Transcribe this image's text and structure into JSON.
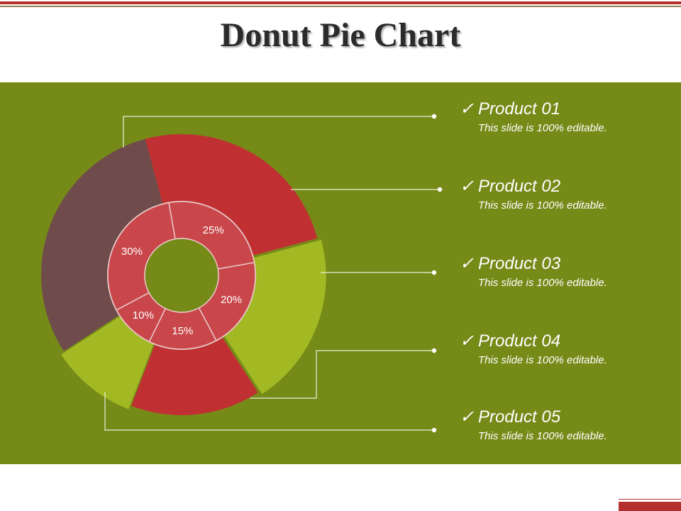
{
  "title": "Donut Pie Chart",
  "colors": {
    "background_panel": "#768a18",
    "accent_red": "#b52f2d",
    "line": "#e8eedb"
  },
  "chart_data": {
    "type": "pie",
    "subtype": "donut-with-outer-ring",
    "title": "",
    "inner_ring": {
      "labels": [
        "25%",
        "20%",
        "15%",
        "10%",
        "30%"
      ],
      "values": [
        25,
        20,
        15,
        10,
        30
      ],
      "color": "#c9474b"
    },
    "outer_ring": {
      "values": [
        25,
        20,
        15,
        10,
        30
      ],
      "colors": [
        "#c03032",
        "#a2b923",
        "#c03032",
        "#a2b923",
        "#6f4b4b"
      ]
    },
    "legend_placement": "right"
  },
  "legend": {
    "check_glyph": "✓",
    "items": [
      {
        "name": "Product 01",
        "desc": "This slide is 100% editable."
      },
      {
        "name": "Product 02",
        "desc": "This slide is 100% editable."
      },
      {
        "name": "Product 03",
        "desc": "This slide is 100% editable."
      },
      {
        "name": "Product 04",
        "desc": "This slide is 100% editable."
      },
      {
        "name": "Product 05",
        "desc": "This slide is 100% editable."
      }
    ]
  }
}
